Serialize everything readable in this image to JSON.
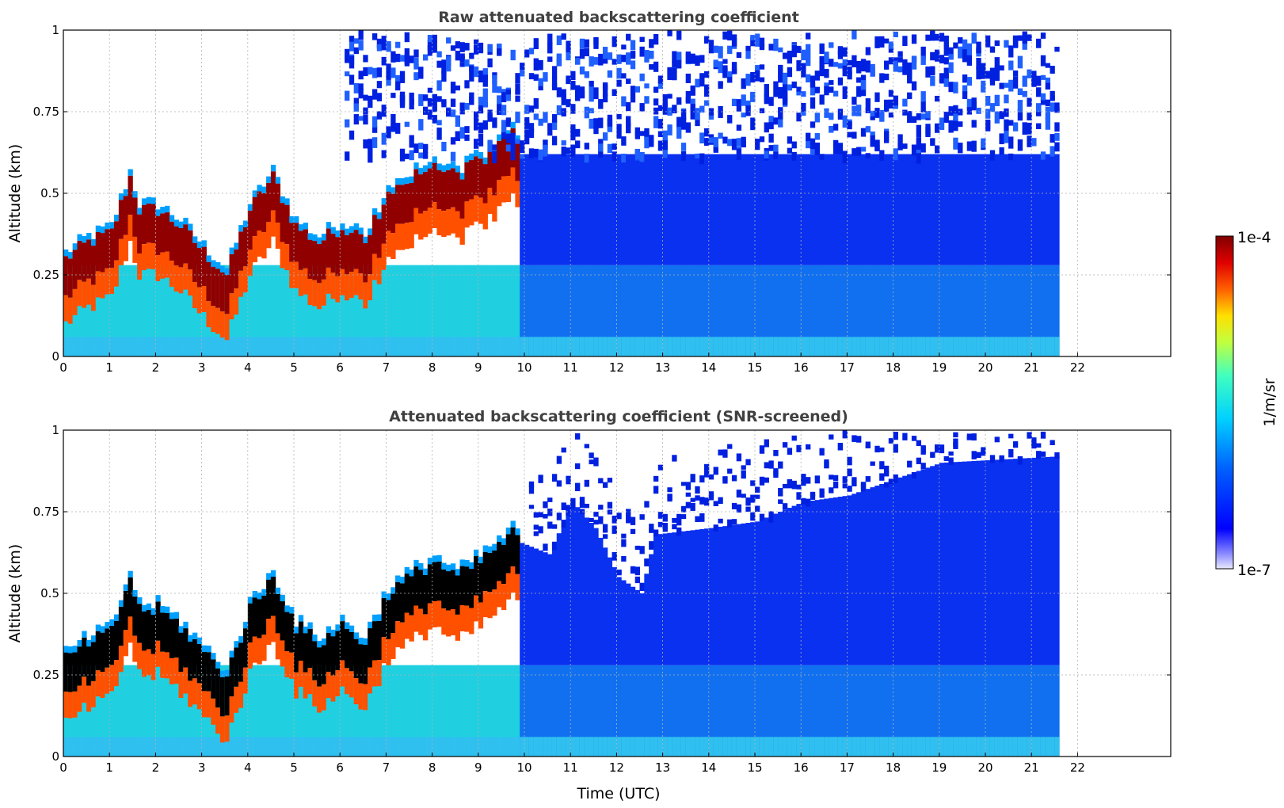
{
  "chart_data": [
    {
      "type": "heatmap",
      "title": "Raw attenuated backscattering coefficient",
      "xlabel": "",
      "ylabel": "Altitude (km)",
      "xlim": [
        0,
        24
      ],
      "ylim": [
        0,
        1
      ],
      "x_ticks": [
        "0",
        "1",
        "2",
        "3",
        "4",
        "5",
        "6",
        "7",
        "8",
        "9",
        "10",
        "11",
        "12",
        "13",
        "14",
        "15",
        "16",
        "17",
        "18",
        "19",
        "20",
        "21",
        "22"
      ],
      "y_ticks": [
        "0",
        "0.25",
        "0.5",
        "0.75",
        "1"
      ],
      "grid": true,
      "data_extent_hours": [
        0,
        21.6
      ],
      "colormap": "jet",
      "layer_top_km": [
        [
          0,
          0.3
        ],
        [
          0.5,
          0.35
        ],
        [
          1,
          0.38
        ],
        [
          1.4,
          0.55
        ],
        [
          1.6,
          0.45
        ],
        [
          2,
          0.45
        ],
        [
          2.5,
          0.4
        ],
        [
          3,
          0.32
        ],
        [
          3.5,
          0.25
        ],
        [
          4,
          0.45
        ],
        [
          4.5,
          0.55
        ],
        [
          5,
          0.4
        ],
        [
          5.5,
          0.35
        ],
        [
          6,
          0.4
        ],
        [
          6.5,
          0.35
        ],
        [
          7,
          0.5
        ],
        [
          7.5,
          0.55
        ],
        [
          8,
          0.6
        ],
        [
          8.5,
          0.55
        ],
        [
          9,
          0.6
        ],
        [
          9.7,
          0.68
        ]
      ]
    },
    {
      "type": "heatmap",
      "title": "Attenuated backscattering coefficient (SNR-screened)",
      "xlabel": "Time (UTC)",
      "ylabel": "Altitude (km)",
      "xlim": [
        0,
        24
      ],
      "ylim": [
        0,
        1
      ],
      "x_ticks": [
        "0",
        "1",
        "2",
        "3",
        "4",
        "5",
        "6",
        "7",
        "8",
        "9",
        "10",
        "11",
        "12",
        "13",
        "14",
        "15",
        "16",
        "17",
        "18",
        "19",
        "20",
        "21",
        "22"
      ],
      "y_ticks": [
        "0",
        "0.25",
        "0.5",
        "0.75",
        "1"
      ],
      "grid": true,
      "data_extent_hours": [
        0,
        21.6
      ],
      "colormap": "jet",
      "signal_top_km": [
        [
          9.8,
          0.66
        ],
        [
          10.5,
          0.62
        ],
        [
          11,
          0.78
        ],
        [
          11.5,
          0.7
        ],
        [
          12,
          0.55
        ],
        [
          12.5,
          0.5
        ],
        [
          12.8,
          0.68
        ],
        [
          14,
          0.7
        ],
        [
          15,
          0.72
        ],
        [
          16,
          0.78
        ],
        [
          17,
          0.8
        ],
        [
          18,
          0.85
        ],
        [
          19,
          0.9
        ],
        [
          21.6,
          0.92
        ]
      ]
    }
  ],
  "colorbar": {
    "label": "1/m/sr",
    "max_label": "1e-4",
    "min_label": "1e-7",
    "scale": "log",
    "range": [
      1e-07,
      0.0001
    ]
  }
}
